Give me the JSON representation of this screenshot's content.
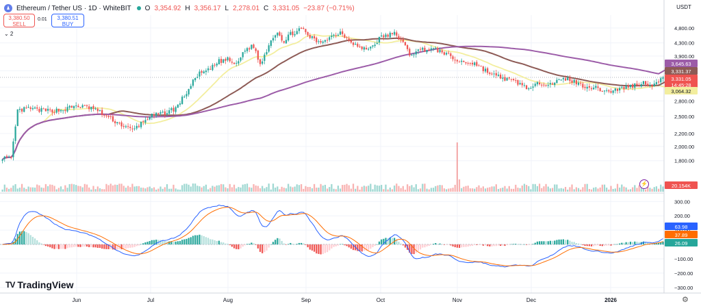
{
  "header": {
    "title": "Ethereum / Tether US · 1D · WhiteBIT",
    "open_label": "O",
    "open": "3,354.92",
    "high_label": "H",
    "high": "3,356.17",
    "low_label": "L",
    "low": "2,278.01",
    "close_label": "C",
    "close": "3,331.05",
    "change": "−23.87 (−0.71%)"
  },
  "trade": {
    "sell_price": "3,380.50",
    "sell_label": "SELL",
    "spread": "0.01",
    "buy_price": "3,380.51",
    "buy_label": "BUY"
  },
  "indicators_toggle": "⌄ 2",
  "currency": "USDT",
  "brand": "TradingView",
  "colors": {
    "up": "#26a69a",
    "down": "#ef5350",
    "sma_fast": "#f3ee9e",
    "sma_mid": "#8d5a55",
    "sma_slow": "#9c5ca8",
    "macd": "#2962ff",
    "signal": "#ff6d00"
  },
  "chart_data": [
    {
      "type": "candlestick",
      "title": "Ethereum / Tether US · 1D · WhiteBIT",
      "y_scale": "log",
      "ylim": [
        1600,
        5200
      ],
      "y_ticks": [
        "4,800.00",
        "4,300.00",
        "3,900.00",
        "3,500.00",
        "3,100.00",
        "2,800.00",
        "2,500.00",
        "2,200.00",
        "2,000.00",
        "1,800.00"
      ],
      "x_ticks": [
        "Jun",
        "Jul",
        "Aug",
        "Sep",
        "Oct",
        "Nov",
        "Dec",
        "2026"
      ],
      "waypoints_close": [
        [
          0,
          1850
        ],
        [
          4,
          1820
        ],
        [
          7,
          2600
        ],
        [
          12,
          2650
        ],
        [
          20,
          2600
        ],
        [
          28,
          2620
        ],
        [
          34,
          2700
        ],
        [
          42,
          2650
        ],
        [
          50,
          2450
        ],
        [
          60,
          2250
        ],
        [
          68,
          2500
        ],
        [
          74,
          2550
        ],
        [
          80,
          2650
        ],
        [
          86,
          3050
        ],
        [
          90,
          3400
        ],
        [
          95,
          3500
        ],
        [
          100,
          3750
        ],
        [
          104,
          3800
        ],
        [
          108,
          3650
        ],
        [
          112,
          4100
        ],
        [
          116,
          4200
        ],
        [
          119,
          3650
        ],
        [
          124,
          4400
        ],
        [
          127,
          4700
        ],
        [
          130,
          4300
        ],
        [
          133,
          4600
        ],
        [
          138,
          4750
        ],
        [
          142,
          4500
        ],
        [
          146,
          4300
        ],
        [
          150,
          4450
        ],
        [
          156,
          4650
        ],
        [
          162,
          4300
        ],
        [
          166,
          4100
        ],
        [
          170,
          4150
        ],
        [
          175,
          4500
        ],
        [
          181,
          4600
        ],
        [
          184,
          4400
        ],
        [
          188,
          3950
        ],
        [
          194,
          4100
        ],
        [
          199,
          4100
        ],
        [
          204,
          4000
        ],
        [
          210,
          3750
        ],
        [
          218,
          3700
        ],
        [
          226,
          3400
        ],
        [
          232,
          3300
        ],
        [
          238,
          3200
        ],
        [
          244,
          3050
        ],
        [
          248,
          3200
        ],
        [
          254,
          3200
        ],
        [
          261,
          3300
        ],
        [
          267,
          3150
        ],
        [
          272,
          3100
        ],
        [
          280,
          3000
        ],
        [
          288,
          3100
        ],
        [
          296,
          3200
        ],
        [
          301,
          3150
        ],
        [
          305,
          3331
        ]
      ],
      "overlays": [
        {
          "name": "SMA fast",
          "last_value": "3,064.32",
          "color": "#f3ee9e"
        },
        {
          "name": "SMA mid",
          "last_value": "3,331.37",
          "color": "#8d5a55"
        },
        {
          "name": "SMA slow",
          "last_value": "3,645.63",
          "color": "#9c5ca8"
        }
      ],
      "price_tags": {
        "last": "3,331.05",
        "countdown": "14:45:28"
      }
    },
    {
      "type": "bar",
      "name": "Volume",
      "last_value": "20.154K",
      "spike_index": 210
    },
    {
      "type": "histogram",
      "name": "MACD",
      "ylim": [
        -320,
        330
      ],
      "y_ticks": [
        "300.00",
        "200.00",
        "100.00",
        "0.00",
        "−100.00",
        "−200.00",
        "−300.00"
      ],
      "last_values": {
        "macd": "63.98",
        "signal": "37.89",
        "histogram": "26.09"
      }
    }
  ]
}
